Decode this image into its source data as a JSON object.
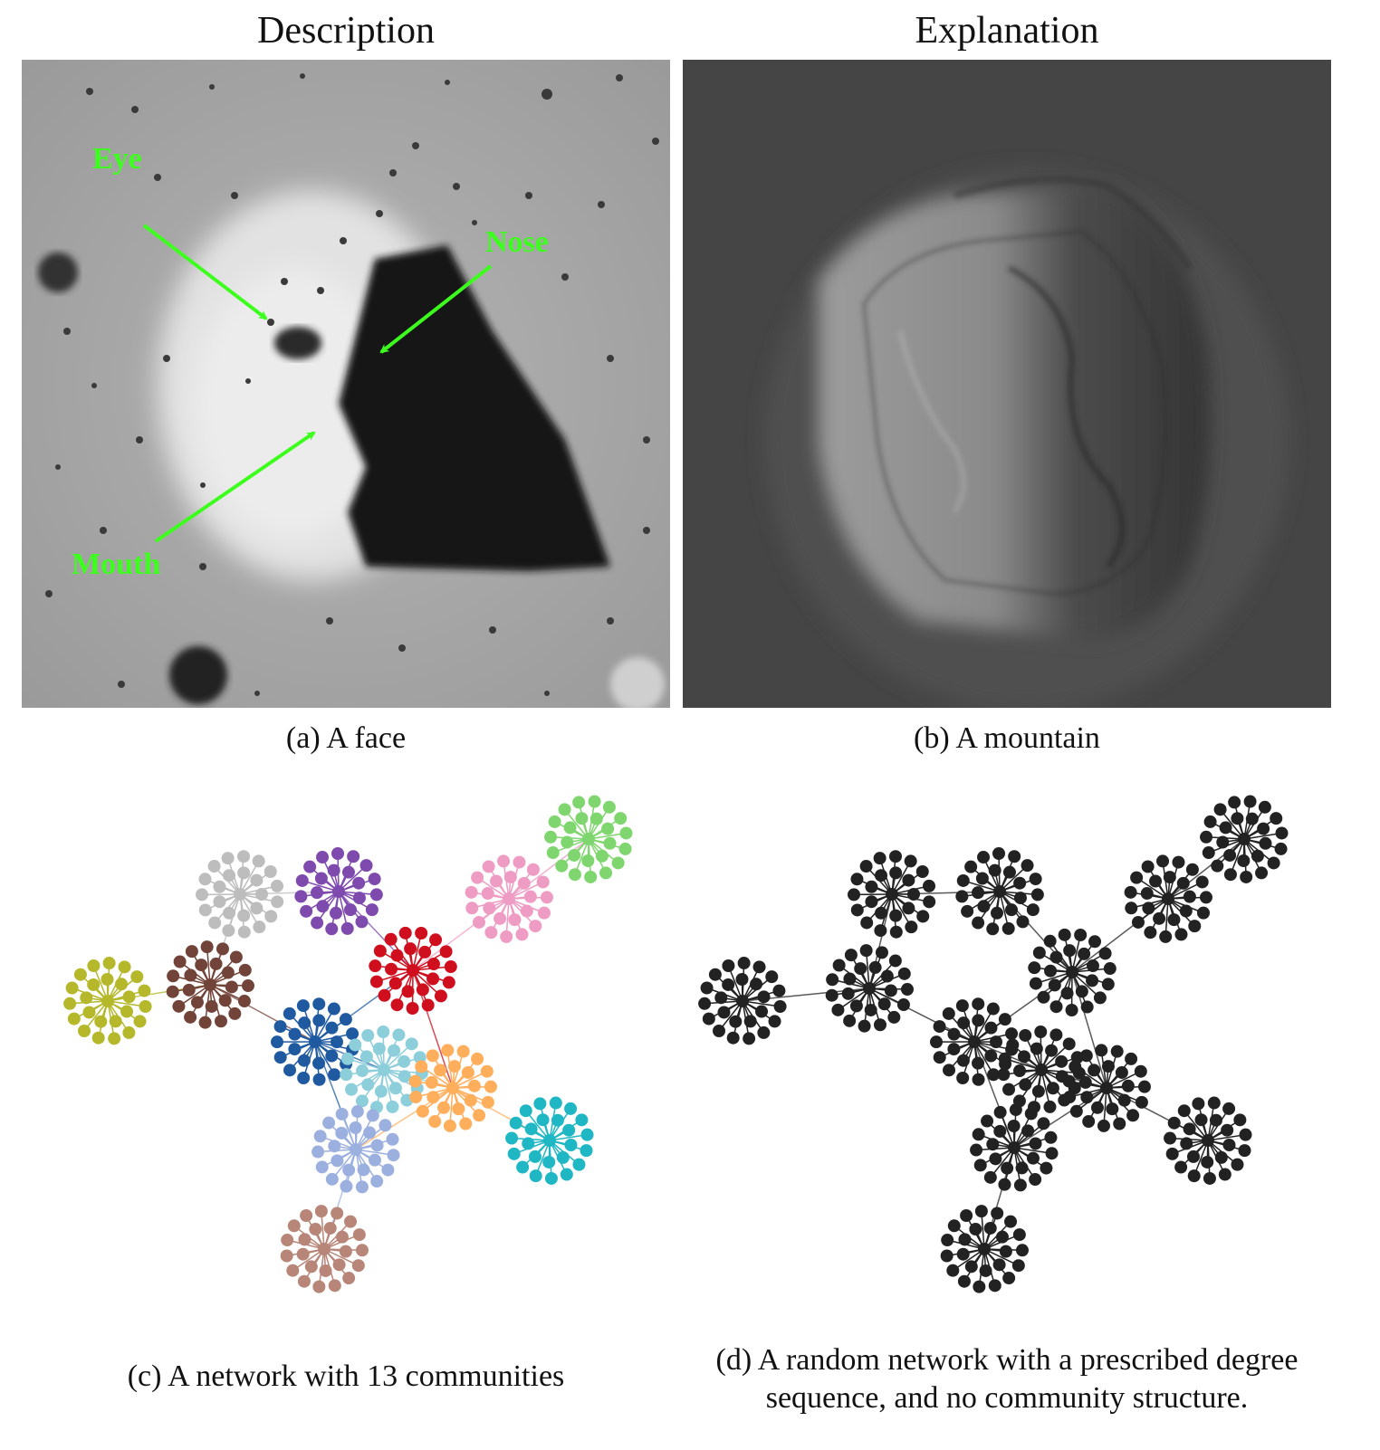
{
  "headers": {
    "left": "Description",
    "right": "Explanation"
  },
  "panel_a": {
    "caption": "(a) A face",
    "annotations": {
      "eye": "Eye",
      "nose": "Nose",
      "mouth": "Mouth"
    },
    "annotation_color": "#3dff1e"
  },
  "panel_b": {
    "caption": "(b) A mountain"
  },
  "panel_c": {
    "caption": "(c) A network with 13 communities",
    "colors": [
      "#bdbdbd",
      "#7e4aae",
      "#ef9cc4",
      "#7fd66e",
      "#b5b82a",
      "#724439",
      "#cf0f1e",
      "#1f5aa1",
      "#8dcedb",
      "#ffae5c",
      "#1fb7c4",
      "#9cb0e0",
      "#b88678"
    ]
  },
  "panel_d": {
    "caption_line1": "(d) A random network with a prescribed degree",
    "caption_line2": "sequence, and no community structure.",
    "node_color": "#222222"
  }
}
